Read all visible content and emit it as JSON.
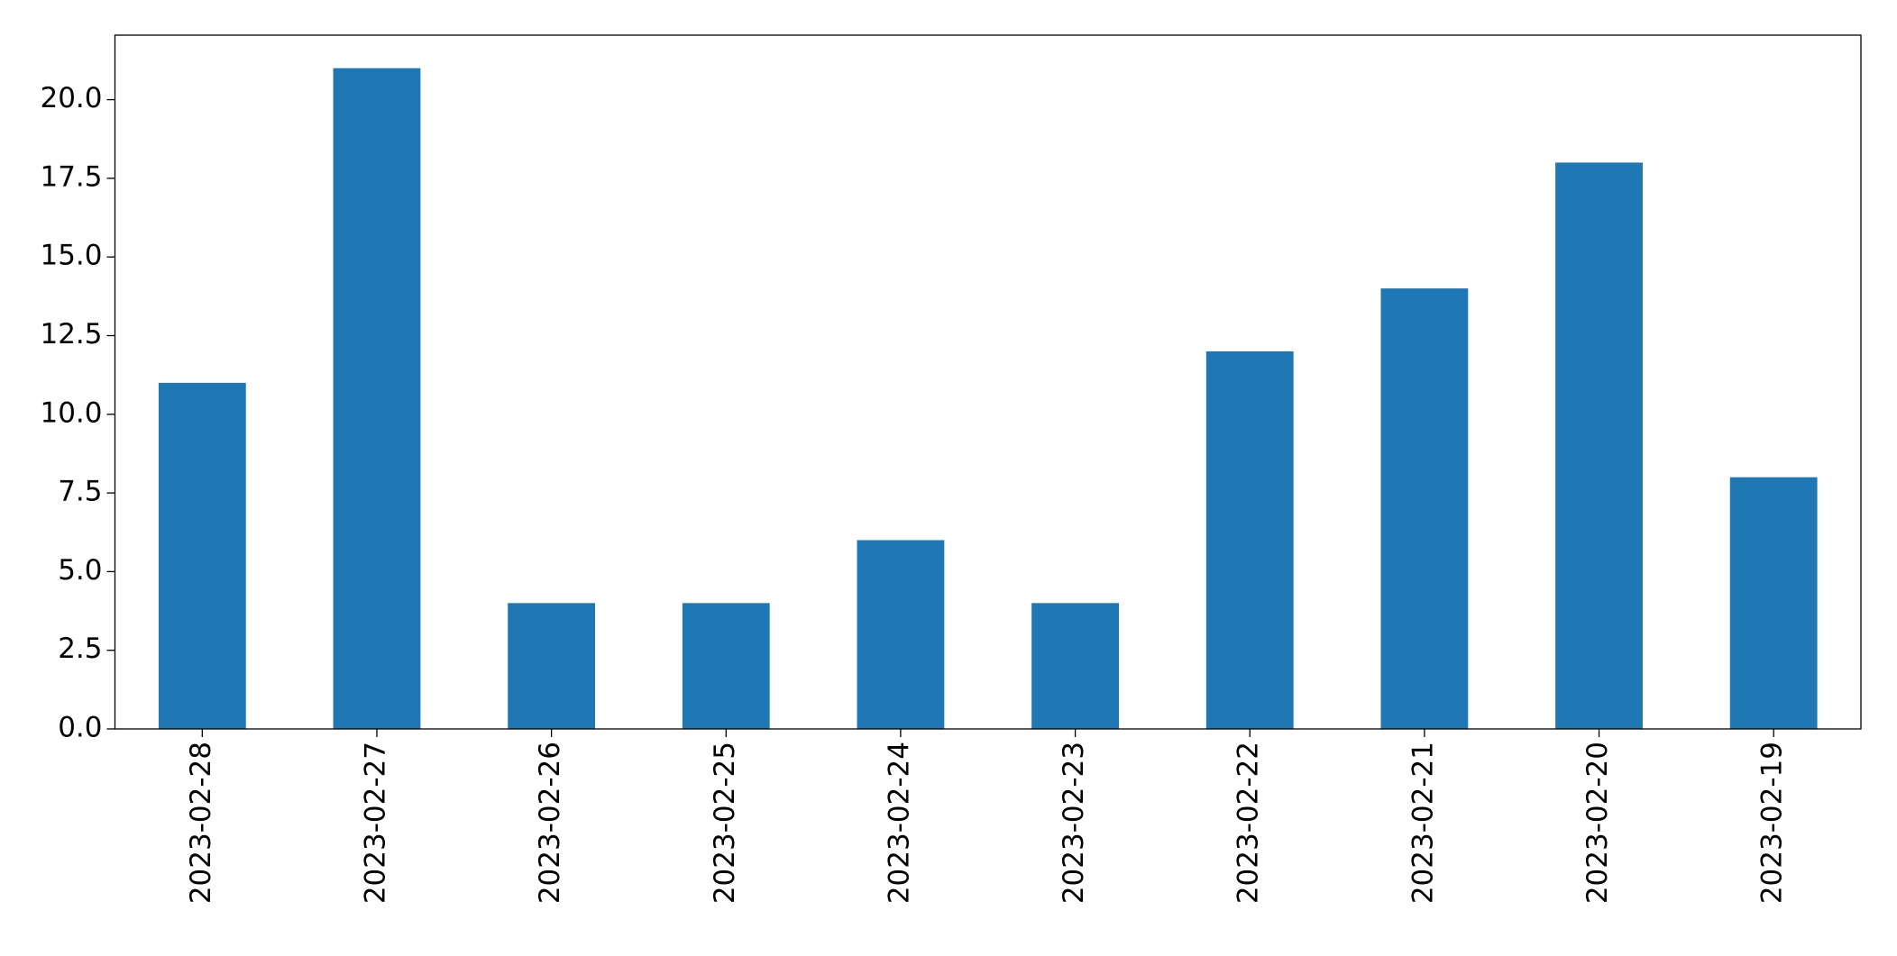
{
  "chart_data": {
    "type": "bar",
    "categories": [
      "2023-02-28",
      "2023-02-27",
      "2023-02-26",
      "2023-02-25",
      "2023-02-24",
      "2023-02-23",
      "2023-02-22",
      "2023-02-21",
      "2023-02-20",
      "2023-02-19"
    ],
    "values": [
      11,
      21,
      4,
      4,
      6,
      4,
      12,
      14,
      18,
      8
    ],
    "color": "#1f77b4",
    "ylim": [
      0,
      22.05
    ],
    "yticks": [
      {
        "value": 0,
        "label": "0.0"
      },
      2.5,
      {
        "value": 5,
        "label": "5.0"
      },
      7.5,
      {
        "value": 10,
        "label": "10.0"
      },
      12.5,
      {
        "value": 15,
        "label": "15.0"
      },
      17.5,
      {
        "value": 20,
        "label": "20.0"
      }
    ],
    "grid": false
  }
}
